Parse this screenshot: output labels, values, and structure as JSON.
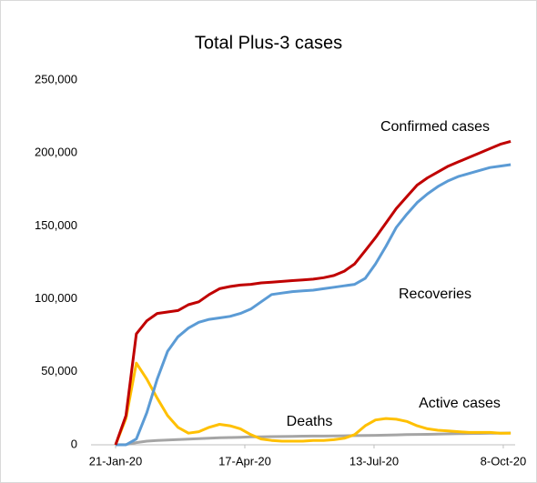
{
  "chart_data": {
    "type": "line",
    "title": "Total Plus-3 cases",
    "x": [
      "21-Jan-20",
      "28-Jan-20",
      "4-Feb-20",
      "11-Feb-20",
      "18-Feb-20",
      "25-Feb-20",
      "3-Mar-20",
      "10-Mar-20",
      "17-Mar-20",
      "24-Mar-20",
      "31-Mar-20",
      "7-Apr-20",
      "14-Apr-20",
      "21-Apr-20",
      "28-Apr-20",
      "5-May-20",
      "12-May-20",
      "19-May-20",
      "26-May-20",
      "2-Jun-20",
      "9-Jun-20",
      "16-Jun-20",
      "23-Jun-20",
      "30-Jun-20",
      "7-Jul-20",
      "14-Jul-20",
      "21-Jul-20",
      "28-Jul-20",
      "4-Aug-20",
      "11-Aug-20",
      "18-Aug-20",
      "25-Aug-20",
      "1-Sep-20",
      "8-Sep-20",
      "15-Sep-20",
      "22-Sep-20",
      "29-Sep-20",
      "6-Oct-20",
      "13-Oct-20"
    ],
    "series": [
      {
        "name": "Confirmed cases",
        "color": "#c00000",
        "values": [
          0,
          20000,
          76000,
          85000,
          90000,
          91000,
          92000,
          96000,
          98000,
          103000,
          107000,
          108500,
          109500,
          110000,
          111000,
          111500,
          112000,
          112500,
          113000,
          113500,
          114500,
          116000,
          119000,
          124000,
          133000,
          142000,
          152000,
          162000,
          170000,
          178000,
          183000,
          187000,
          191000,
          194000,
          197000,
          200000,
          203000,
          206000,
          208000
        ]
      },
      {
        "name": "Recoveries",
        "color": "#5b9bd5",
        "values": [
          0,
          0,
          4000,
          22000,
          45000,
          64000,
          74000,
          80000,
          84000,
          86000,
          87000,
          88000,
          90000,
          93000,
          98000,
          103000,
          104000,
          105000,
          105500,
          106000,
          107000,
          108000,
          109000,
          110000,
          114000,
          124000,
          136000,
          149000,
          158000,
          166000,
          172000,
          177000,
          181000,
          184000,
          186000,
          188000,
          190000,
          191000,
          192000
        ]
      },
      {
        "name": "Deaths",
        "color": "#a5a5a5",
        "values": [
          0,
          200,
          1500,
          2500,
          3000,
          3300,
          3600,
          3900,
          4200,
          4500,
          4800,
          5000,
          5200,
          5400,
          5500,
          5600,
          5700,
          5800,
          5900,
          6000,
          6000,
          6100,
          6200,
          6300,
          6400,
          6500,
          6600,
          6800,
          7000,
          7100,
          7200,
          7300,
          7500,
          7600,
          7700,
          7800,
          7900,
          8000,
          8100
        ]
      },
      {
        "name": "Active cases",
        "color": "#ffc000",
        "values": [
          0,
          18000,
          56000,
          45000,
          32000,
          20000,
          12000,
          8000,
          9000,
          12000,
          14000,
          13000,
          11000,
          7000,
          4000,
          3000,
          2500,
          2500,
          2500,
          3000,
          3000,
          3500,
          4500,
          7000,
          13000,
          17000,
          18000,
          17500,
          16000,
          13000,
          11000,
          10000,
          9500,
          9000,
          8500,
          8500,
          8500,
          8000,
          8000
        ]
      }
    ],
    "xlim": [
      "21-Jan-20",
      "16-Oct-20"
    ],
    "xticks": [
      "21-Jan-20",
      "17-Apr-20",
      "13-Jul-20",
      "8-Oct-20"
    ],
    "ylim": [
      0,
      250000
    ],
    "yticks": [
      0,
      {
        "value": 50000,
        "label": "50,000"
      },
      {
        "value": 100000,
        "label": "100,000"
      },
      {
        "value": 150000,
        "label": "150,000"
      },
      {
        "value": 200000,
        "label": "200,000"
      },
      {
        "value": 250000,
        "label": "250,000"
      }
    ],
    "grid": false
  }
}
